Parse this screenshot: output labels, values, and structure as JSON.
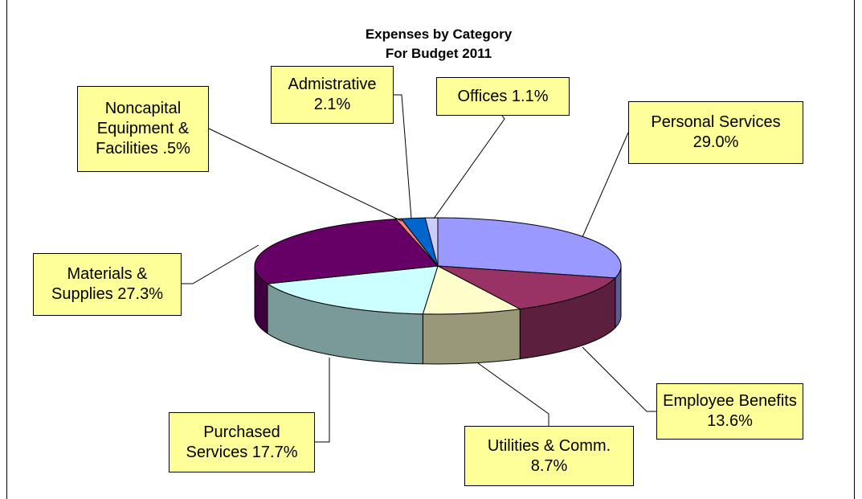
{
  "chart_data": {
    "type": "pie3d",
    "title": "Expenses by Category",
    "subtitle": "For Budget 2011",
    "categories": [
      "Personal Services",
      "Employee Benefits",
      "Utilities & Comm.",
      "Purchased Services",
      "Materials & Supplies",
      "Noncapital Equipment & Facilities",
      "Admistrative",
      "Offices"
    ],
    "values": [
      29.0,
      13.6,
      8.7,
      17.7,
      27.3,
      0.5,
      2.1,
      1.1
    ],
    "value_labels": [
      "29.0%",
      "13.6%",
      "8.7%",
      "17.7%",
      "27.3%",
      ".5%",
      "2.1%",
      "1.1%"
    ],
    "colors": [
      "#9999ff",
      "#993366",
      "#ffffcc",
      "#ccffff",
      "#660066",
      "#ff8080",
      "#0066cc",
      "#ccccff"
    ]
  }
}
